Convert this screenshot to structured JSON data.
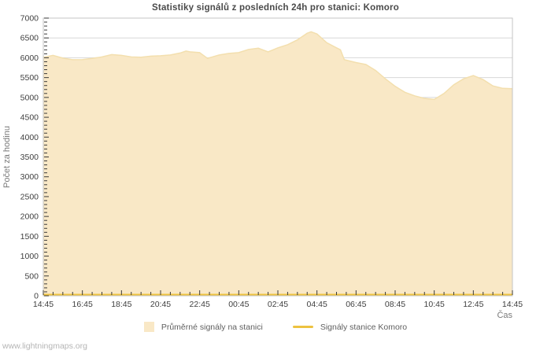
{
  "page": {
    "background": "#ffffff"
  },
  "watermark": {
    "text": "www.lightningmaps.org"
  },
  "chart_data": {
    "type": "area",
    "title": "Statistiky signálů z posledních 24h pro stanici: Komoro",
    "xlabel": "Čas",
    "ylabel": "Počet za hodinu",
    "ylim": [
      0,
      7000
    ],
    "y_major_step": 500,
    "y_minor_step": 100,
    "x_hours_range": [
      0,
      24
    ],
    "x_major_step_hours": 2,
    "x_minor_step_hours": 0.5,
    "x_tick_labels": [
      "14:45",
      "16:45",
      "18:45",
      "20:45",
      "22:45",
      "00:45",
      "02:45",
      "04:45",
      "06:45",
      "08:45",
      "10:45",
      "12:45",
      "14:45"
    ],
    "grid": "horizontal gridlines every 500 units, no vertical gridlines",
    "legend_position": "bottom-center",
    "colors": {
      "series_line": "#edc240",
      "series_fill": "#f9e8c6",
      "series_edge": "#f3dfae",
      "grid_line": "#d8d8d8",
      "plot_border": "#c4c4c4",
      "tick_mark": "#3a3a3a",
      "tick_label": "#3f3f3f",
      "axis_label": "#7a7a7a"
    },
    "series": [
      {
        "name": "Průměrné signály na stanici",
        "style": "area",
        "points": [
          [
            0,
            6010
          ],
          [
            0.5,
            6060
          ],
          [
            1,
            5990
          ],
          [
            1.5,
            5950
          ],
          [
            2,
            5955
          ],
          [
            2.5,
            5985
          ],
          [
            3,
            6020
          ],
          [
            3.5,
            6080
          ],
          [
            4,
            6060
          ],
          [
            4.5,
            6020
          ],
          [
            5,
            6015
          ],
          [
            5.5,
            6040
          ],
          [
            6,
            6050
          ],
          [
            6.5,
            6070
          ],
          [
            7,
            6120
          ],
          [
            7.3,
            6170
          ],
          [
            7.5,
            6150
          ],
          [
            8,
            6130
          ],
          [
            8.4,
            5985
          ],
          [
            9,
            6070
          ],
          [
            9.5,
            6110
          ],
          [
            10,
            6130
          ],
          [
            10.5,
            6210
          ],
          [
            11,
            6240
          ],
          [
            11.5,
            6150
          ],
          [
            12,
            6250
          ],
          [
            12.5,
            6330
          ],
          [
            13,
            6450
          ],
          [
            13.5,
            6620
          ],
          [
            13.7,
            6655
          ],
          [
            14,
            6600
          ],
          [
            14.5,
            6380
          ],
          [
            15,
            6250
          ],
          [
            15.2,
            6200
          ],
          [
            15.4,
            5950
          ],
          [
            16,
            5880
          ],
          [
            16.5,
            5830
          ],
          [
            17,
            5680
          ],
          [
            17.5,
            5470
          ],
          [
            18,
            5280
          ],
          [
            18.5,
            5130
          ],
          [
            19,
            5040
          ],
          [
            19.5,
            4975
          ],
          [
            20,
            4950
          ],
          [
            20.5,
            5100
          ],
          [
            21,
            5320
          ],
          [
            21.5,
            5470
          ],
          [
            22,
            5550
          ],
          [
            22.5,
            5450
          ],
          [
            23,
            5290
          ],
          [
            23.5,
            5230
          ],
          [
            24,
            5220
          ]
        ]
      },
      {
        "name": "Signály stanice Komoro",
        "style": "line",
        "points": [
          [
            0,
            0
          ],
          [
            24,
            0
          ]
        ]
      }
    ]
  }
}
